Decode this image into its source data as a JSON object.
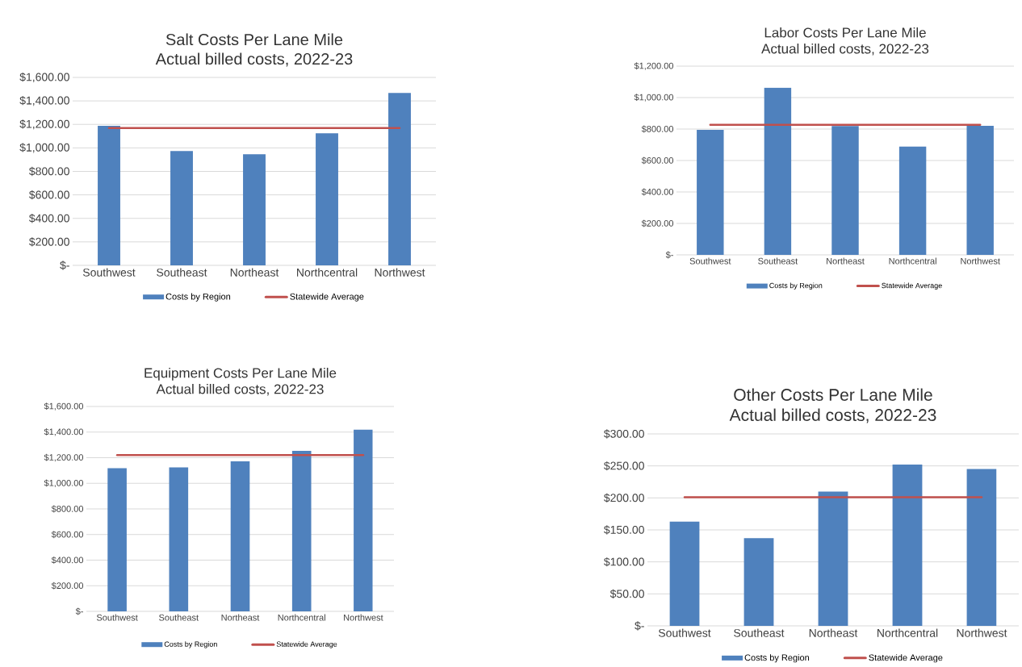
{
  "chart_data": [
    {
      "type": "bar",
      "title": "Salt Costs Per Lane Mile",
      "subtitle": "Actual billed costs, 2022-23",
      "categories": [
        "Southwest",
        "Southeast",
        "Northeast",
        "Northcentral",
        "Northwest"
      ],
      "series": [
        {
          "name": "Costs by Region",
          "color": "#4f81bd",
          "values": [
            1188,
            973,
            946,
            1125,
            1467
          ]
        },
        {
          "name": "Statewide Average",
          "type": "line",
          "color": "#c0504d",
          "values": [
            1169,
            1169,
            1169,
            1169,
            1169
          ]
        }
      ],
      "ylim": [
        0,
        1600
      ],
      "yticks": [
        {
          "value": 0,
          "label": "$-"
        },
        {
          "value": 200,
          "label": "$200.00"
        },
        {
          "value": 400,
          "label": "$400.00"
        },
        {
          "value": 600,
          "label": "$600.00"
        },
        {
          "value": 800,
          "label": "$800.00"
        },
        {
          "value": 1000,
          "label": "$1,000.00"
        },
        {
          "value": 1200,
          "label": "$1,200.00"
        },
        {
          "value": 1400,
          "label": "$1,400.00"
        },
        {
          "value": 1600,
          "label": "$1,600.00"
        }
      ],
      "grid": "y",
      "legend": "bottom"
    },
    {
      "type": "bar",
      "title": "Labor Costs Per Lane Mile",
      "subtitle": "Actual billed costs, 2022-23",
      "categories": [
        "Southwest",
        "Southeast",
        "Northeast",
        "Northcentral",
        "Northwest"
      ],
      "series": [
        {
          "name": "Costs by Region",
          "color": "#4f81bd",
          "values": [
            795,
            1063,
            819,
            689,
            821
          ]
        },
        {
          "name": "Statewide Average",
          "type": "line",
          "color": "#c0504d",
          "values": [
            827,
            827,
            827,
            827,
            827
          ]
        }
      ],
      "ylim": [
        0,
        1200
      ],
      "yticks": [
        {
          "value": 0,
          "label": "$-"
        },
        {
          "value": 200,
          "label": "$200.00"
        },
        {
          "value": 400,
          "label": "$400.00"
        },
        {
          "value": 600,
          "label": "$600.00"
        },
        {
          "value": 800,
          "label": "$800.00"
        },
        {
          "value": 1000,
          "label": "$1,000.00"
        },
        {
          "value": 1200,
          "label": "$1,200.00"
        }
      ],
      "grid": "y",
      "legend": "bottom"
    },
    {
      "type": "bar",
      "title": "Equipment Costs Per Lane Mile",
      "subtitle": "Actual billed costs, 2022-23",
      "categories": [
        "Southwest",
        "Southeast",
        "Northeast",
        "Northcentral",
        "Northwest"
      ],
      "series": [
        {
          "name": "Costs by Region",
          "color": "#4f81bd",
          "values": [
            1118,
            1124,
            1172,
            1254,
            1419
          ]
        },
        {
          "name": "Statewide Average",
          "type": "line",
          "color": "#c0504d",
          "values": [
            1220,
            1220,
            1220,
            1220,
            1220
          ]
        }
      ],
      "ylim": [
        0,
        1600
      ],
      "yticks": [
        {
          "value": 0,
          "label": "$-"
        },
        {
          "value": 200,
          "label": "$200.00"
        },
        {
          "value": 400,
          "label": "$400.00"
        },
        {
          "value": 600,
          "label": "$600.00"
        },
        {
          "value": 800,
          "label": "$800.00"
        },
        {
          "value": 1000,
          "label": "$1,000.00"
        },
        {
          "value": 1200,
          "label": "$1,200.00"
        },
        {
          "value": 1400,
          "label": "$1,400.00"
        },
        {
          "value": 1600,
          "label": "$1,600.00"
        }
      ],
      "grid": "y",
      "legend": "bottom"
    },
    {
      "type": "bar",
      "title": "Other Costs Per Lane Mile",
      "subtitle": "Actual billed costs, 2022-23",
      "categories": [
        "Southwest",
        "Southeast",
        "Northeast",
        "Northcentral",
        "Northwest"
      ],
      "series": [
        {
          "name": "Costs by Region",
          "color": "#4f81bd",
          "values": [
            163,
            137,
            210,
            252,
            245
          ]
        },
        {
          "name": "Statewide Average",
          "type": "line",
          "color": "#c0504d",
          "values": [
            201,
            201,
            201,
            201,
            201
          ]
        }
      ],
      "ylim": [
        0,
        300
      ],
      "yticks": [
        {
          "value": 0,
          "label": "$-"
        },
        {
          "value": 50,
          "label": "$50.00"
        },
        {
          "value": 100,
          "label": "$100.00"
        },
        {
          "value": 150,
          "label": "$150.00"
        },
        {
          "value": 200,
          "label": "$200.00"
        },
        {
          "value": 250,
          "label": "$250.00"
        },
        {
          "value": 300,
          "label": "$300.00"
        }
      ],
      "grid": "y",
      "legend": "bottom"
    }
  ]
}
